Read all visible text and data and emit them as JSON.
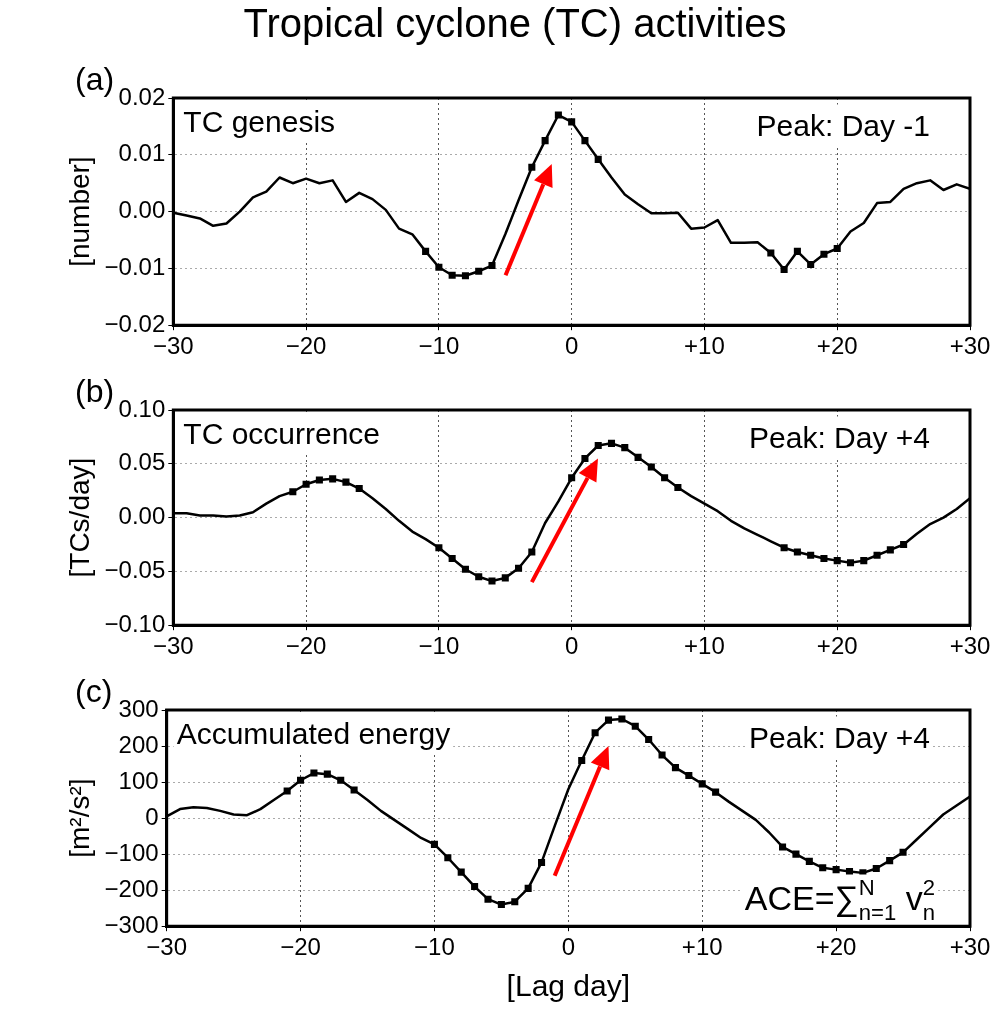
{
  "chart_data": [
    {
      "type": "line",
      "title": "Tropical cyclone (TC) activities",
      "ylabel": "[number]",
      "annotations": [
        "(a)",
        "TC genesis",
        "Peak: Day -1"
      ],
      "x": [
        -30,
        -29,
        -28,
        -27,
        -26,
        -25,
        -24,
        -23,
        -22,
        -21,
        -20,
        -19,
        -18,
        -17,
        -16,
        -15,
        -14,
        -13,
        -12,
        -11,
        -10,
        -9,
        -8,
        -7,
        -6,
        -5,
        -4,
        -3,
        -2,
        -1,
        0,
        1,
        2,
        3,
        4,
        5,
        6,
        7,
        8,
        9,
        10,
        11,
        12,
        13,
        14,
        15,
        16,
        17,
        18,
        19,
        20,
        21,
        22,
        23,
        24,
        25,
        26,
        27,
        28,
        29,
        30
      ],
      "series": [
        {
          "type": "line",
          "color": "#000000",
          "marker": "none",
          "values": [
            -0.0002,
            -0.0007,
            -0.0012,
            -0.0025,
            -0.0021,
            0.0,
            0.0025,
            0.0035,
            0.006,
            0.005,
            0.0058,
            0.005,
            0.0055,
            0.0017,
            0.0033,
            0.0022,
            0.0003,
            -0.003,
            -0.004,
            -0.007,
            -0.0098,
            -0.0112,
            -0.0113,
            -0.0105,
            -0.0095,
            -0.004,
            0.002,
            0.0078,
            0.0125,
            0.017,
            0.0158,
            0.0125,
            0.0092,
            0.006,
            0.003,
            0.0013,
            -0.0003,
            -0.0003,
            -0.0002,
            -0.003,
            -0.0028,
            -0.0015,
            -0.0055,
            -0.0055,
            -0.0054,
            -0.0073,
            -0.0102,
            -0.007,
            -0.0093,
            -0.0075,
            -0.0065,
            -0.0035,
            -0.002,
            0.0015,
            0.0017,
            0.004,
            0.005,
            0.0055,
            0.0038,
            0.0048,
            0.004
          ]
        },
        {
          "type": "scatter",
          "color": "#000000",
          "marker": "square",
          "values": [
            null,
            null,
            null,
            null,
            null,
            null,
            null,
            null,
            null,
            null,
            null,
            null,
            null,
            null,
            null,
            null,
            null,
            null,
            null,
            -0.007,
            -0.0098,
            -0.0112,
            -0.0113,
            -0.0105,
            -0.0095,
            null,
            null,
            0.0078,
            0.0125,
            0.017,
            0.0158,
            0.0125,
            0.0092,
            null,
            null,
            null,
            null,
            null,
            null,
            null,
            null,
            null,
            null,
            null,
            null,
            -0.0073,
            -0.0102,
            -0.007,
            -0.0093,
            -0.0075,
            -0.0065,
            null,
            null,
            null,
            null,
            null,
            null,
            null,
            null,
            null,
            null
          ]
        }
      ],
      "xlim": [
        -30,
        30
      ],
      "xticks": [
        {
          "value": -30,
          "label": "−30"
        },
        {
          "value": -20,
          "label": "−20"
        },
        {
          "value": -10,
          "label": "−10"
        },
        {
          "value": 0,
          "label": "0"
        },
        {
          "value": 10,
          "label": "+10"
        },
        {
          "value": 20,
          "label": "+20"
        },
        {
          "value": 30,
          "label": "+30"
        }
      ],
      "ylim": [
        -0.02,
        0.02
      ],
      "yticks": [
        {
          "value": -0.02,
          "label": "−0.02"
        },
        {
          "value": -0.01,
          "label": "−0.01"
        },
        {
          "value": 0,
          "label": "0.00"
        },
        {
          "value": 0.01,
          "label": "0.01"
        },
        {
          "value": 0.02,
          "label": "0.02"
        }
      ],
      "grid": true,
      "legend": false,
      "line_style": "solid"
    },
    {
      "type": "line",
      "ylabel": "[TCs/day]",
      "annotations": [
        "(b)",
        "TC occurrence",
        "Peak: Day +4"
      ],
      "x": [
        -30,
        -29,
        -28,
        -27,
        -26,
        -25,
        -24,
        -23,
        -22,
        -21,
        -20,
        -19,
        -18,
        -17,
        -16,
        -15,
        -14,
        -13,
        -12,
        -11,
        -10,
        -9,
        -8,
        -7,
        -6,
        -5,
        -4,
        -3,
        -2,
        -1,
        0,
        1,
        2,
        3,
        4,
        5,
        6,
        7,
        8,
        9,
        10,
        11,
        12,
        13,
        14,
        15,
        16,
        17,
        18,
        19,
        20,
        21,
        22,
        23,
        24,
        25,
        26,
        27,
        28,
        29,
        30
      ],
      "series": [
        {
          "type": "line",
          "color": "#000000",
          "marker": "none",
          "values": [
            0.004,
            0.004,
            0.002,
            0.002,
            0.001,
            0.002,
            0.005,
            0.013,
            0.02,
            0.024,
            0.031,
            0.035,
            0.036,
            0.033,
            0.027,
            0.018,
            0.008,
            -0.003,
            -0.013,
            -0.02,
            -0.028,
            -0.038,
            -0.048,
            -0.055,
            -0.059,
            -0.056,
            -0.047,
            -0.032,
            -0.005,
            0.015,
            0.037,
            0.055,
            0.067,
            0.069,
            0.065,
            0.056,
            0.047,
            0.037,
            0.028,
            0.02,
            0.013,
            0.006,
            -0.003,
            -0.01,
            -0.016,
            -0.022,
            -0.028,
            -0.032,
            -0.035,
            -0.038,
            -0.04,
            -0.042,
            -0.04,
            -0.035,
            -0.03,
            -0.025,
            -0.015,
            -0.006,
            0.0,
            0.008,
            0.018
          ]
        },
        {
          "type": "scatter",
          "color": "#000000",
          "marker": "square",
          "values": [
            null,
            null,
            null,
            null,
            null,
            null,
            null,
            null,
            null,
            0.024,
            0.031,
            0.035,
            0.036,
            0.033,
            0.027,
            null,
            null,
            null,
            null,
            null,
            -0.028,
            -0.038,
            -0.048,
            -0.055,
            -0.059,
            -0.056,
            -0.047,
            -0.032,
            null,
            null,
            0.037,
            0.055,
            0.067,
            0.069,
            0.065,
            0.056,
            0.047,
            0.037,
            0.028,
            null,
            null,
            null,
            null,
            null,
            null,
            null,
            -0.028,
            -0.032,
            -0.035,
            -0.038,
            -0.04,
            -0.042,
            -0.04,
            -0.035,
            -0.03,
            -0.025,
            null,
            null,
            null,
            null,
            null
          ]
        }
      ],
      "xlim": [
        -30,
        30
      ],
      "xticks": [
        {
          "value": -30,
          "label": "−30"
        },
        {
          "value": -20,
          "label": "−20"
        },
        {
          "value": -10,
          "label": "−10"
        },
        {
          "value": 0,
          "label": "0"
        },
        {
          "value": 10,
          "label": "+10"
        },
        {
          "value": 20,
          "label": "+20"
        },
        {
          "value": 30,
          "label": "+30"
        }
      ],
      "ylim": [
        -0.1,
        0.1
      ],
      "yticks": [
        {
          "value": -0.1,
          "label": "−0.10"
        },
        {
          "value": -0.05,
          "label": "−0.05"
        },
        {
          "value": 0,
          "label": "0.00"
        },
        {
          "value": 0.05,
          "label": "0.05"
        },
        {
          "value": 0.1,
          "label": "0.10"
        }
      ],
      "grid": true,
      "legend": false,
      "line_style": "solid"
    },
    {
      "type": "line",
      "xlabel": "[Lag day]",
      "ylabel": "[m²/s²]",
      "annotations": [
        "(c)",
        "Accumulated energy",
        "Peak: Day +4",
        "ACE=∑$_{n=1}$$^{N}$ v$_{n}$$^{2}$"
      ],
      "x": [
        -30,
        -29,
        -28,
        -27,
        -26,
        -25,
        -24,
        -23,
        -22,
        -21,
        -20,
        -19,
        -18,
        -17,
        -16,
        -15,
        -14,
        -13,
        -12,
        -11,
        -10,
        -9,
        -8,
        -7,
        -6,
        -5,
        -4,
        -3,
        -2,
        -1,
        0,
        1,
        2,
        3,
        4,
        5,
        6,
        7,
        8,
        9,
        10,
        11,
        12,
        13,
        14,
        15,
        16,
        17,
        18,
        19,
        20,
        21,
        22,
        23,
        24,
        25,
        26,
        27,
        28,
        29,
        30
      ],
      "series": [
        {
          "type": "line",
          "color": "#000000",
          "marker": "none",
          "values": [
            5,
            25,
            30,
            28,
            20,
            10,
            8,
            25,
            50,
            75,
            105,
            125,
            122,
            105,
            78,
            50,
            20,
            -5,
            -30,
            -55,
            -73,
            -110,
            -150,
            -190,
            -225,
            -240,
            -232,
            -195,
            -123,
            -20,
            80,
            160,
            237,
            272,
            275,
            255,
            218,
            175,
            140,
            118,
            95,
            72,
            45,
            20,
            -5,
            -40,
            -80,
            -100,
            -120,
            -138,
            -143,
            -148,
            -152,
            -140,
            -118,
            -95,
            -60,
            -25,
            10,
            35,
            60
          ]
        },
        {
          "type": "scatter",
          "color": "#000000",
          "marker": "square",
          "values": [
            null,
            null,
            null,
            null,
            null,
            null,
            null,
            null,
            null,
            75,
            105,
            125,
            122,
            105,
            78,
            null,
            null,
            null,
            null,
            null,
            -73,
            -110,
            -150,
            -190,
            -225,
            -240,
            -232,
            -195,
            -123,
            null,
            null,
            160,
            237,
            272,
            275,
            255,
            218,
            175,
            140,
            118,
            95,
            72,
            null,
            null,
            null,
            null,
            -80,
            -100,
            -120,
            -138,
            -143,
            -148,
            -152,
            -140,
            -118,
            -95,
            null,
            null,
            null,
            null,
            null
          ]
        }
      ],
      "xlim": [
        -30,
        30
      ],
      "xticks": [
        {
          "value": -30,
          "label": "−30"
        },
        {
          "value": -20,
          "label": "−20"
        },
        {
          "value": -10,
          "label": "−10"
        },
        {
          "value": 0,
          "label": "0"
        },
        {
          "value": 10,
          "label": "+10"
        },
        {
          "value": 20,
          "label": "+20"
        },
        {
          "value": 30,
          "label": "+30"
        }
      ],
      "ylim": [
        -300,
        300
      ],
      "yticks": [
        {
          "value": -300,
          "label": "−300"
        },
        {
          "value": -200,
          "label": "−200"
        },
        {
          "value": -100,
          "label": "−100"
        },
        0,
        100,
        200,
        300
      ],
      "grid": true,
      "legend": false,
      "line_style": "solid"
    }
  ]
}
